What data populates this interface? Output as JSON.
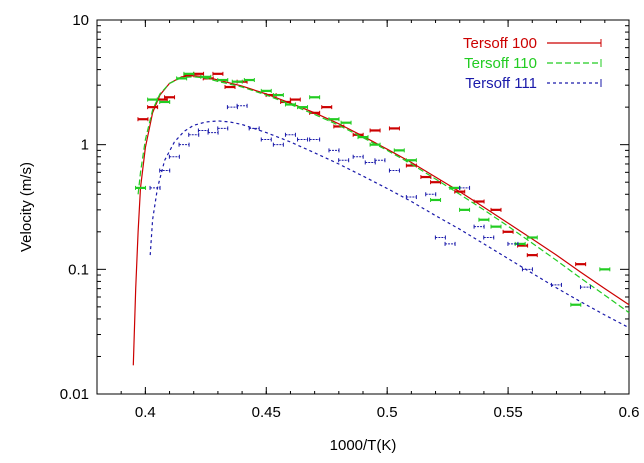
{
  "chart_data": {
    "type": "line",
    "title": "",
    "xlabel": "1000/T(K)",
    "ylabel": "Velocity (m/s)",
    "xlim": [
      0.38,
      0.6
    ],
    "ylim": [
      0.01,
      10
    ],
    "yscale": "log",
    "grid": false,
    "legend_position": "top-right",
    "x_ticks": [
      {
        "value": 0.4,
        "label": "0.4"
      },
      {
        "value": 0.45,
        "label": "0.45"
      },
      {
        "value": 0.5,
        "label": "0.5"
      },
      {
        "value": 0.55,
        "label": "0.55"
      },
      {
        "value": 0.6,
        "label": "0.6"
      }
    ],
    "y_ticks": [
      {
        "value": 0.01,
        "label": "0.01"
      },
      {
        "value": 0.1,
        "label": "0.1"
      },
      {
        "value": 1,
        "label": "1"
      },
      {
        "value": 10,
        "label": "10"
      }
    ],
    "series": [
      {
        "name": "Tersoff 100",
        "color": "#cc0000",
        "line_style": "solid",
        "fit_x": [
          0.395,
          0.396,
          0.397,
          0.398,
          0.4,
          0.403,
          0.406,
          0.41,
          0.415,
          0.42,
          0.425,
          0.43,
          0.44,
          0.45,
          0.46,
          0.47,
          0.48,
          0.49,
          0.5,
          0.51,
          0.52,
          0.53,
          0.54,
          0.55,
          0.56,
          0.57,
          0.58,
          0.59,
          0.6
        ],
        "fit_y": [
          0.017,
          0.07,
          0.2,
          0.45,
          0.95,
          1.8,
          2.5,
          3.1,
          3.5,
          3.58,
          3.5,
          3.3,
          2.95,
          2.55,
          2.15,
          1.8,
          1.47,
          1.17,
          0.92,
          0.72,
          0.55,
          0.42,
          0.315,
          0.235,
          0.175,
          0.13,
          0.095,
          0.07,
          0.052
        ],
        "points": [
          {
            "x": 0.399,
            "y": 1.6
          },
          {
            "x": 0.403,
            "y": 2.0
          },
          {
            "x": 0.407,
            "y": 2.3
          },
          {
            "x": 0.41,
            "y": 2.4
          },
          {
            "x": 0.418,
            "y": 3.6
          },
          {
            "x": 0.422,
            "y": 3.7
          },
          {
            "x": 0.426,
            "y": 3.4
          },
          {
            "x": 0.43,
            "y": 3.7
          },
          {
            "x": 0.435,
            "y": 2.9
          },
          {
            "x": 0.44,
            "y": 3.2
          },
          {
            "x": 0.452,
            "y": 2.5
          },
          {
            "x": 0.458,
            "y": 2.2
          },
          {
            "x": 0.462,
            "y": 2.3
          },
          {
            "x": 0.47,
            "y": 1.8
          },
          {
            "x": 0.475,
            "y": 2.0
          },
          {
            "x": 0.48,
            "y": 1.4
          },
          {
            "x": 0.488,
            "y": 1.2
          },
          {
            "x": 0.495,
            "y": 1.3
          },
          {
            "x": 0.503,
            "y": 1.35
          },
          {
            "x": 0.51,
            "y": 0.68
          },
          {
            "x": 0.516,
            "y": 0.55
          },
          {
            "x": 0.52,
            "y": 0.5
          },
          {
            "x": 0.53,
            "y": 0.42
          },
          {
            "x": 0.538,
            "y": 0.35
          },
          {
            "x": 0.545,
            "y": 0.3
          },
          {
            "x": 0.55,
            "y": 0.2
          },
          {
            "x": 0.556,
            "y": 0.155
          },
          {
            "x": 0.56,
            "y": 0.13
          },
          {
            "x": 0.58,
            "y": 0.11
          }
        ]
      },
      {
        "name": "Tersoff 110",
        "color": "#22cc22",
        "line_style": "dashed",
        "fit_x": [
          0.397,
          0.398,
          0.4,
          0.403,
          0.406,
          0.41,
          0.415,
          0.42,
          0.425,
          0.43,
          0.44,
          0.45,
          0.46,
          0.47,
          0.48,
          0.49,
          0.5,
          0.51,
          0.52,
          0.53,
          0.54,
          0.55,
          0.56,
          0.57,
          0.58,
          0.59,
          0.6
        ],
        "fit_y": [
          0.4,
          0.6,
          1.1,
          1.9,
          2.55,
          3.1,
          3.45,
          3.5,
          3.42,
          3.22,
          2.9,
          2.5,
          2.1,
          1.75,
          1.43,
          1.14,
          0.9,
          0.7,
          0.53,
          0.4,
          0.3,
          0.222,
          0.162,
          0.118,
          0.085,
          0.062,
          0.045
        ],
        "points": [
          {
            "x": 0.398,
            "y": 0.45
          },
          {
            "x": 0.403,
            "y": 2.3
          },
          {
            "x": 0.408,
            "y": 2.2
          },
          {
            "x": 0.415,
            "y": 3.4
          },
          {
            "x": 0.418,
            "y": 3.7
          },
          {
            "x": 0.425,
            "y": 3.5
          },
          {
            "x": 0.432,
            "y": 3.3
          },
          {
            "x": 0.438,
            "y": 3.2
          },
          {
            "x": 0.443,
            "y": 3.3
          },
          {
            "x": 0.45,
            "y": 2.7
          },
          {
            "x": 0.455,
            "y": 2.5
          },
          {
            "x": 0.46,
            "y": 2.1
          },
          {
            "x": 0.465,
            "y": 2.0
          },
          {
            "x": 0.47,
            "y": 2.4
          },
          {
            "x": 0.478,
            "y": 1.6
          },
          {
            "x": 0.483,
            "y": 1.5
          },
          {
            "x": 0.49,
            "y": 1.15
          },
          {
            "x": 0.495,
            "y": 1.0
          },
          {
            "x": 0.505,
            "y": 0.9
          },
          {
            "x": 0.51,
            "y": 0.75
          },
          {
            "x": 0.52,
            "y": 0.36
          },
          {
            "x": 0.528,
            "y": 0.45
          },
          {
            "x": 0.532,
            "y": 0.3
          },
          {
            "x": 0.54,
            "y": 0.25
          },
          {
            "x": 0.545,
            "y": 0.22
          },
          {
            "x": 0.555,
            "y": 0.16
          },
          {
            "x": 0.56,
            "y": 0.18
          },
          {
            "x": 0.578,
            "y": 0.052
          },
          {
            "x": 0.59,
            "y": 0.1
          }
        ]
      },
      {
        "name": "Tersoff 111",
        "color": "#1a1aaa",
        "line_style": "dotted",
        "fit_x": [
          0.402,
          0.403,
          0.405,
          0.408,
          0.412,
          0.416,
          0.42,
          0.425,
          0.43,
          0.435,
          0.44,
          0.45,
          0.46,
          0.47,
          0.48,
          0.49,
          0.5,
          0.51,
          0.52,
          0.53,
          0.54,
          0.55,
          0.56,
          0.57,
          0.58,
          0.59,
          0.6
        ],
        "fit_y": [
          0.13,
          0.25,
          0.45,
          0.75,
          1.05,
          1.28,
          1.43,
          1.52,
          1.55,
          1.52,
          1.45,
          1.25,
          1.05,
          0.86,
          0.7,
          0.56,
          0.445,
          0.35,
          0.27,
          0.21,
          0.16,
          0.122,
          0.093,
          0.071,
          0.055,
          0.043,
          0.034
        ],
        "points": [
          {
            "x": 0.404,
            "y": 0.45
          },
          {
            "x": 0.408,
            "y": 0.62
          },
          {
            "x": 0.412,
            "y": 0.8
          },
          {
            "x": 0.416,
            "y": 1.0
          },
          {
            "x": 0.42,
            "y": 1.2
          },
          {
            "x": 0.424,
            "y": 1.3
          },
          {
            "x": 0.428,
            "y": 1.25
          },
          {
            "x": 0.432,
            "y": 1.35
          },
          {
            "x": 0.436,
            "y": 2.0
          },
          {
            "x": 0.44,
            "y": 2.05
          },
          {
            "x": 0.445,
            "y": 1.35
          },
          {
            "x": 0.45,
            "y": 1.1
          },
          {
            "x": 0.455,
            "y": 1.0
          },
          {
            "x": 0.46,
            "y": 1.2
          },
          {
            "x": 0.465,
            "y": 1.1
          },
          {
            "x": 0.47,
            "y": 1.1
          },
          {
            "x": 0.478,
            "y": 0.9
          },
          {
            "x": 0.482,
            "y": 0.75
          },
          {
            "x": 0.488,
            "y": 0.8
          },
          {
            "x": 0.493,
            "y": 0.72
          },
          {
            "x": 0.497,
            "y": 0.75
          },
          {
            "x": 0.503,
            "y": 0.62
          },
          {
            "x": 0.51,
            "y": 0.38
          },
          {
            "x": 0.518,
            "y": 0.4
          },
          {
            "x": 0.522,
            "y": 0.18
          },
          {
            "x": 0.526,
            "y": 0.16
          },
          {
            "x": 0.532,
            "y": 0.45
          },
          {
            "x": 0.538,
            "y": 0.22
          },
          {
            "x": 0.542,
            "y": 0.18
          },
          {
            "x": 0.552,
            "y": 0.16
          },
          {
            "x": 0.558,
            "y": 0.1
          },
          {
            "x": 0.57,
            "y": 0.075
          },
          {
            "x": 0.582,
            "y": 0.072
          }
        ]
      }
    ]
  }
}
